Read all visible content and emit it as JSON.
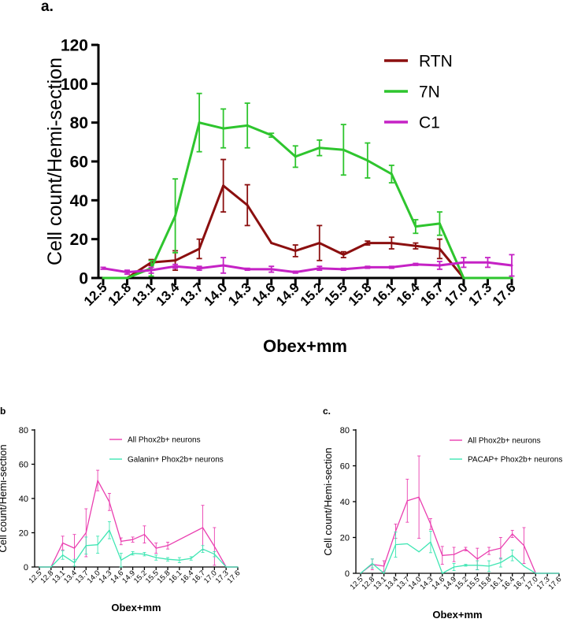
{
  "chart_data": [
    {
      "id": "a",
      "panel_label": "a.",
      "type": "line",
      "title": "",
      "xlabel": "Obex+mm",
      "ylabel": "Cell count/Hemi-section",
      "ylim": [
        0,
        120
      ],
      "yticks": [
        0,
        20,
        40,
        60,
        80,
        100,
        120
      ],
      "categories": [
        "12.5",
        "12.8",
        "13.1",
        "13.4",
        "13.7",
        "14.0",
        "14.3",
        "14.6",
        "14.9",
        "15.2",
        "15.5",
        "15.8",
        "16.1",
        "16.4",
        "16.7",
        "17.0",
        "17.3",
        "17.6"
      ],
      "legend_position": "top-right",
      "series": [
        {
          "name": "RTN",
          "color": "#8b0f0f",
          "values": [
            0,
            0,
            8,
            9,
            15,
            47.5,
            37.5,
            18,
            14,
            18,
            12,
            18,
            18,
            16.5,
            15,
            0,
            0,
            0
          ],
          "errors": [
            0,
            0,
            1.5,
            5,
            5,
            13.5,
            10.5,
            0,
            3,
            9,
            1.5,
            1,
            3,
            1.5,
            5,
            0,
            0,
            0
          ],
          "start_index": 0,
          "end_index": 17
        },
        {
          "name": "7N",
          "color": "#2ec52e",
          "values": [
            0,
            0,
            5,
            32,
            80,
            77,
            78.5,
            73.5,
            62.5,
            67,
            66,
            60.5,
            53.5,
            26.5,
            28,
            0,
            0,
            0
          ],
          "errors": [
            0,
            0,
            4,
            19,
            15,
            10,
            11.5,
            1,
            5.5,
            4,
            13,
            9,
            4.5,
            3.5,
            6,
            0,
            0,
            0
          ],
          "start_index": 0,
          "end_index": 17
        },
        {
          "name": "C1",
          "color": "#c522c5",
          "values": [
            5,
            3,
            4,
            6,
            5,
            6.5,
            4.5,
            4.5,
            3,
            5,
            4.5,
            5.5,
            5.5,
            7,
            6.5,
            8,
            8,
            6.5
          ],
          "errors": [
            0.5,
            1,
            1.5,
            1,
            1,
            4,
            0.5,
            1.5,
            0.5,
            1,
            0.5,
            0.5,
            0.5,
            0.5,
            2,
            2.5,
            2.5,
            5.5
          ],
          "start_index": 0,
          "end_index": 17
        }
      ]
    },
    {
      "id": "b",
      "panel_label": "b",
      "type": "line",
      "title": "",
      "xlabel": "Obex+mm",
      "ylabel": "Cell count/Hemi-section",
      "ylim": [
        0,
        80
      ],
      "yticks": [
        0,
        20,
        40,
        60,
        80
      ],
      "categories": [
        "12.5",
        "12.8",
        "13.1",
        "13.4",
        "13.7",
        "14.0",
        "14.3",
        "14.6",
        "14.9",
        "15.2",
        "15.5",
        "15.8",
        "16.1",
        "16.4",
        "16.7",
        "17.0",
        "17.3",
        "17.6"
      ],
      "legend_position": "top-right",
      "series": [
        {
          "name": "All Phox2b+ neurons",
          "color": "#ea3fb0",
          "values": [
            0,
            0,
            14,
            11,
            20,
            50.5,
            38,
            15,
            16,
            19,
            11,
            12.5,
            null,
            null,
            23,
            12,
            0,
            0
          ],
          "errors": [
            0,
            0,
            4,
            8,
            14,
            6,
            5,
            2,
            1.5,
            5,
            3,
            2,
            0,
            8,
            13,
            11,
            0,
            0
          ],
          "start_index": 0,
          "end_index": 17
        },
        {
          "name": "Galanin+ Phox2b+ neurons",
          "color": "#3fe6b3",
          "values": [
            0,
            0,
            7,
            2.5,
            12.5,
            13,
            21.5,
            4,
            8,
            7.5,
            5.5,
            4.5,
            4,
            5,
            10.5,
            7.5,
            0,
            0
          ],
          "errors": [
            0,
            0,
            2.5,
            2,
            5,
            5,
            5,
            4,
            1,
            1,
            1.5,
            1,
            1.5,
            1,
            2,
            1.5,
            0,
            0
          ],
          "start_index": 0,
          "end_index": 17
        }
      ]
    },
    {
      "id": "c",
      "panel_label": "c.",
      "type": "line",
      "title": "",
      "xlabel": "Obex+mm",
      "ylabel": "Cell count/Hemi-section",
      "ylim": [
        0,
        80
      ],
      "yticks": [
        0,
        20,
        40,
        60,
        80
      ],
      "categories": [
        "12.5",
        "12.8",
        "13.1",
        "13.4",
        "13.7",
        "14.0",
        "14.3",
        "14.6",
        "14.9",
        "15.2",
        "15.5",
        "15.8",
        "16.1",
        "16.4",
        "16.7",
        "17.0",
        "17.3",
        "17.6"
      ],
      "legend_position": "top-right",
      "series": [
        {
          "name": "All Phox2b+ neurons",
          "color": "#ea3fb0",
          "values": [
            0,
            5,
            4,
            23.5,
            40.5,
            42.5,
            27.5,
            10,
            10.5,
            13.5,
            8,
            12.5,
            14,
            22,
            15.5,
            0,
            0,
            0
          ],
          "errors": [
            0,
            3,
            3,
            4,
            12,
            23,
            3,
            5,
            4,
            1,
            6,
            2,
            6,
            2,
            10,
            0,
            0,
            0
          ],
          "start_index": 0,
          "end_index": 17
        },
        {
          "name": "PACAP+ Phox2b+ neurons",
          "color": "#3fe6b3",
          "values": [
            0,
            5.5,
            0,
            16,
            16.5,
            12,
            17.5,
            0,
            3.5,
            4.5,
            4.5,
            4,
            6,
            10,
            4,
            0,
            0,
            0
          ],
          "errors": [
            0,
            2.5,
            0,
            7,
            0,
            0,
            6,
            0,
            2,
            0.5,
            2.5,
            3,
            2.5,
            3,
            0,
            0,
            0,
            0
          ],
          "start_index": 0,
          "end_index": 17
        }
      ]
    }
  ]
}
